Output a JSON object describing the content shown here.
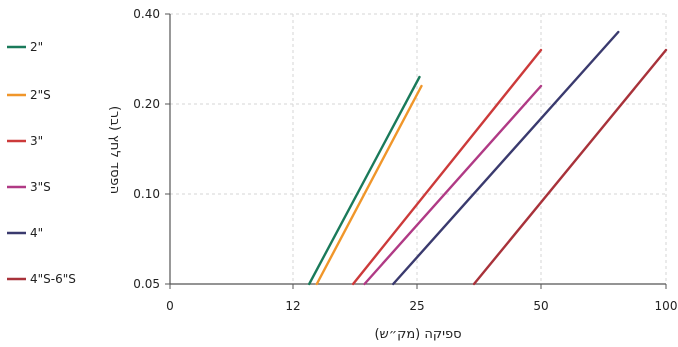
{
  "chart_data": {
    "type": "line",
    "xlabel": "ספיקה (מק״ש)",
    "ylabel": "הפסד לחץ (בר)",
    "x_ticks": [
      {
        "label": "0",
        "value": 0
      },
      {
        "label": "12",
        "value": 12
      },
      {
        "label": "25",
        "value": 25
      },
      {
        "label": "50",
        "value": 50
      },
      {
        "label": "100",
        "value": 100
      }
    ],
    "y_ticks": [
      {
        "label": "0.05",
        "value": 0.05
      },
      {
        "label": "0.10",
        "value": 0.1
      },
      {
        "label": "0.20",
        "value": 0.2
      },
      {
        "label": "0.40",
        "value": 0.4
      }
    ],
    "grid": true,
    "legend_position": "left",
    "series": [
      {
        "name": "2\"",
        "color": "#1a7a5a",
        "points": [
          [
            13.7,
            0.05
          ],
          [
            25.5,
            0.26
          ]
        ]
      },
      {
        "name": "2\"S",
        "color": "#f0962a",
        "points": [
          [
            14.5,
            0.05
          ],
          [
            25.9,
            0.24
          ]
        ]
      },
      {
        "name": "3\"",
        "color": "#cc3a3a",
        "points": [
          [
            18.3,
            0.05
          ],
          [
            50,
            0.32
          ]
        ]
      },
      {
        "name": "3\"S",
        "color": "#b03a85",
        "points": [
          [
            19.5,
            0.05
          ],
          [
            50,
            0.24
          ]
        ]
      },
      {
        "name": "4\"",
        "color": "#3a3a6e",
        "points": [
          [
            22.5,
            0.05
          ],
          [
            80.9,
            0.36
          ]
        ]
      },
      {
        "name": "4\"S-6\"S",
        "color": "#a8323a",
        "points": [
          [
            36.5,
            0.05
          ],
          [
            100,
            0.32
          ]
        ]
      }
    ]
  }
}
